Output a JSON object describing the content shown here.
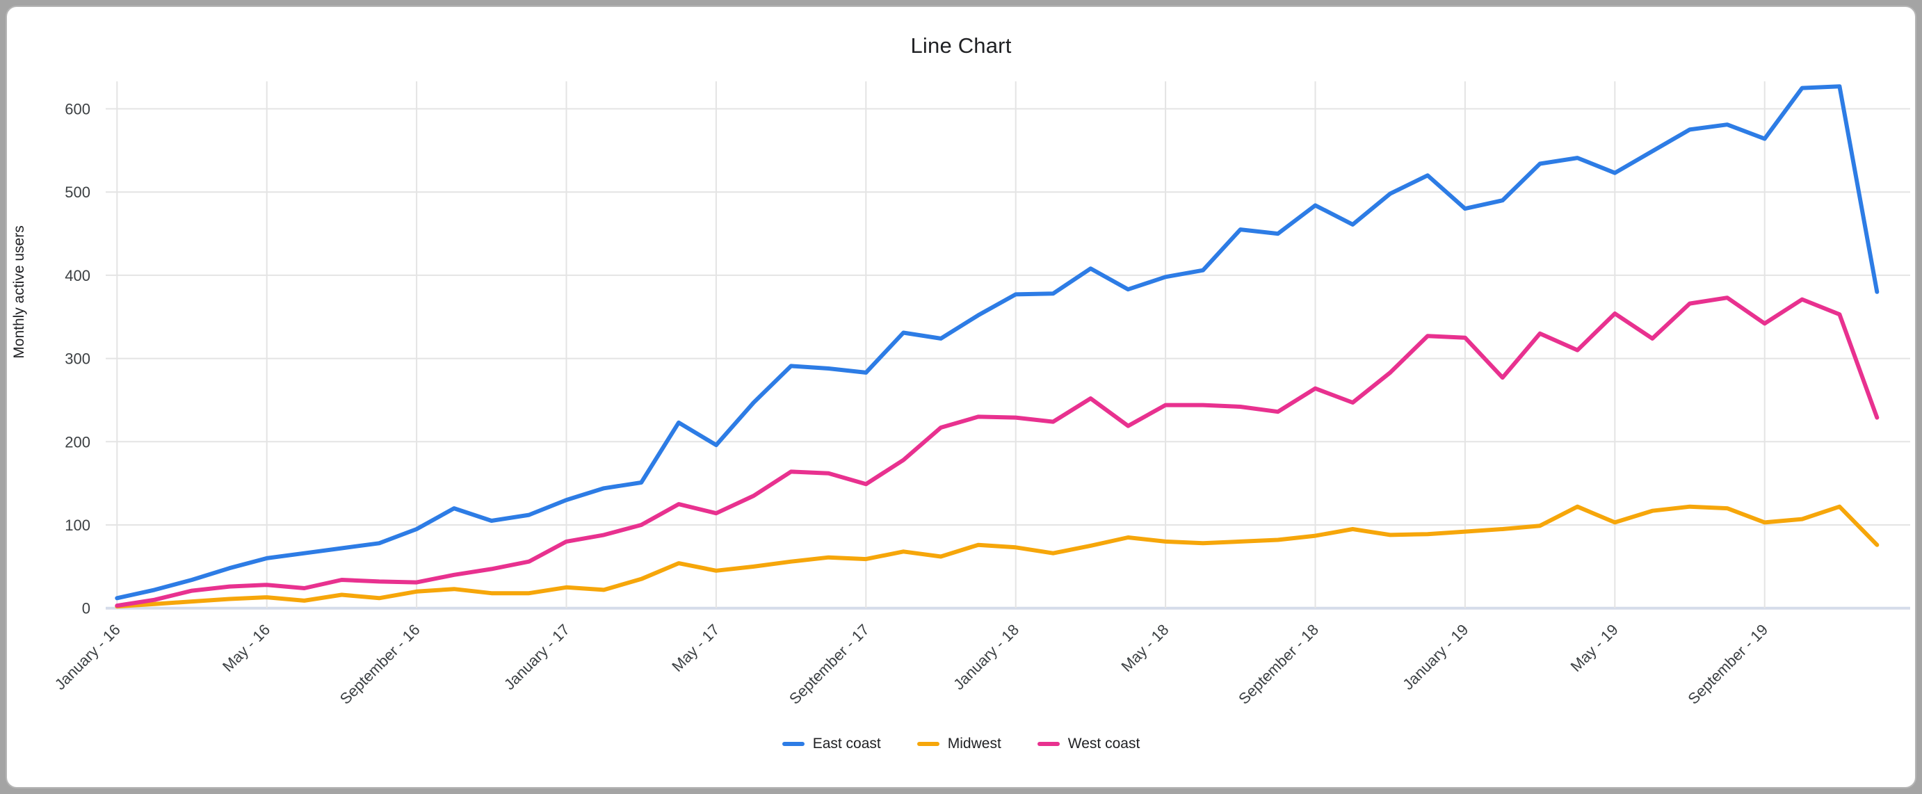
{
  "window": {
    "background": "#a4a4a4",
    "card_background": "#ffffff"
  },
  "chart_data": {
    "type": "line",
    "title": "Line Chart",
    "xlabel": "",
    "ylabel": "Monthly active users",
    "ylim": [
      0,
      650
    ],
    "grid": true,
    "legend_position": "bottom",
    "y_ticks": [
      0,
      100,
      200,
      300,
      400,
      500,
      600
    ],
    "n_points": 48,
    "x_ticks": [
      {
        "index": 0,
        "label": "January - 16"
      },
      {
        "index": 4,
        "label": "May - 16"
      },
      {
        "index": 8,
        "label": "September - 16"
      },
      {
        "index": 12,
        "label": "January - 17"
      },
      {
        "index": 16,
        "label": "May - 17"
      },
      {
        "index": 20,
        "label": "September - 17"
      },
      {
        "index": 24,
        "label": "January - 18"
      },
      {
        "index": 28,
        "label": "May - 18"
      },
      {
        "index": 32,
        "label": "September - 18"
      },
      {
        "index": 36,
        "label": "January - 19"
      },
      {
        "index": 40,
        "label": "May - 19"
      },
      {
        "index": 44,
        "label": "September - 19"
      }
    ],
    "series": [
      {
        "name": "East coast",
        "color": "#2d7ce5",
        "values": [
          12,
          22,
          34,
          48,
          60,
          66,
          72,
          78,
          95,
          120,
          105,
          112,
          130,
          144,
          151,
          223,
          196,
          247,
          291,
          288,
          283,
          331,
          324,
          352,
          377,
          378,
          408,
          383,
          398,
          406,
          455,
          450,
          484,
          461,
          498,
          520,
          480,
          490,
          534,
          541,
          523,
          549,
          575,
          581,
          564,
          625,
          627,
          380
        ]
      },
      {
        "name": "Midwest",
        "color": "#f6a60a",
        "values": [
          2,
          5,
          8,
          11,
          13,
          9,
          16,
          12,
          20,
          23,
          18,
          18,
          25,
          22,
          35,
          54,
          45,
          50,
          56,
          61,
          59,
          68,
          62,
          76,
          73,
          66,
          75,
          85,
          80,
          78,
          80,
          82,
          87,
          95,
          88,
          89,
          92,
          95,
          99,
          122,
          103,
          117,
          122,
          120,
          103,
          107,
          122,
          76
        ]
      },
      {
        "name": "West coast",
        "color": "#e8318f",
        "values": [
          3,
          10,
          21,
          26,
          28,
          24,
          34,
          32,
          31,
          40,
          47,
          56,
          80,
          88,
          100,
          125,
          114,
          135,
          164,
          162,
          149,
          178,
          217,
          230,
          229,
          224,
          252,
          219,
          244,
          244,
          242,
          236,
          264,
          247,
          283,
          327,
          325,
          277,
          330,
          310,
          354,
          324,
          366,
          373,
          342,
          371,
          353,
          229
        ]
      }
    ],
    "colors": {
      "gridline": "#e4e4e4",
      "baseline": "#d5dcea",
      "tick_label": "#3c4043",
      "title_text": "#202124"
    }
  }
}
